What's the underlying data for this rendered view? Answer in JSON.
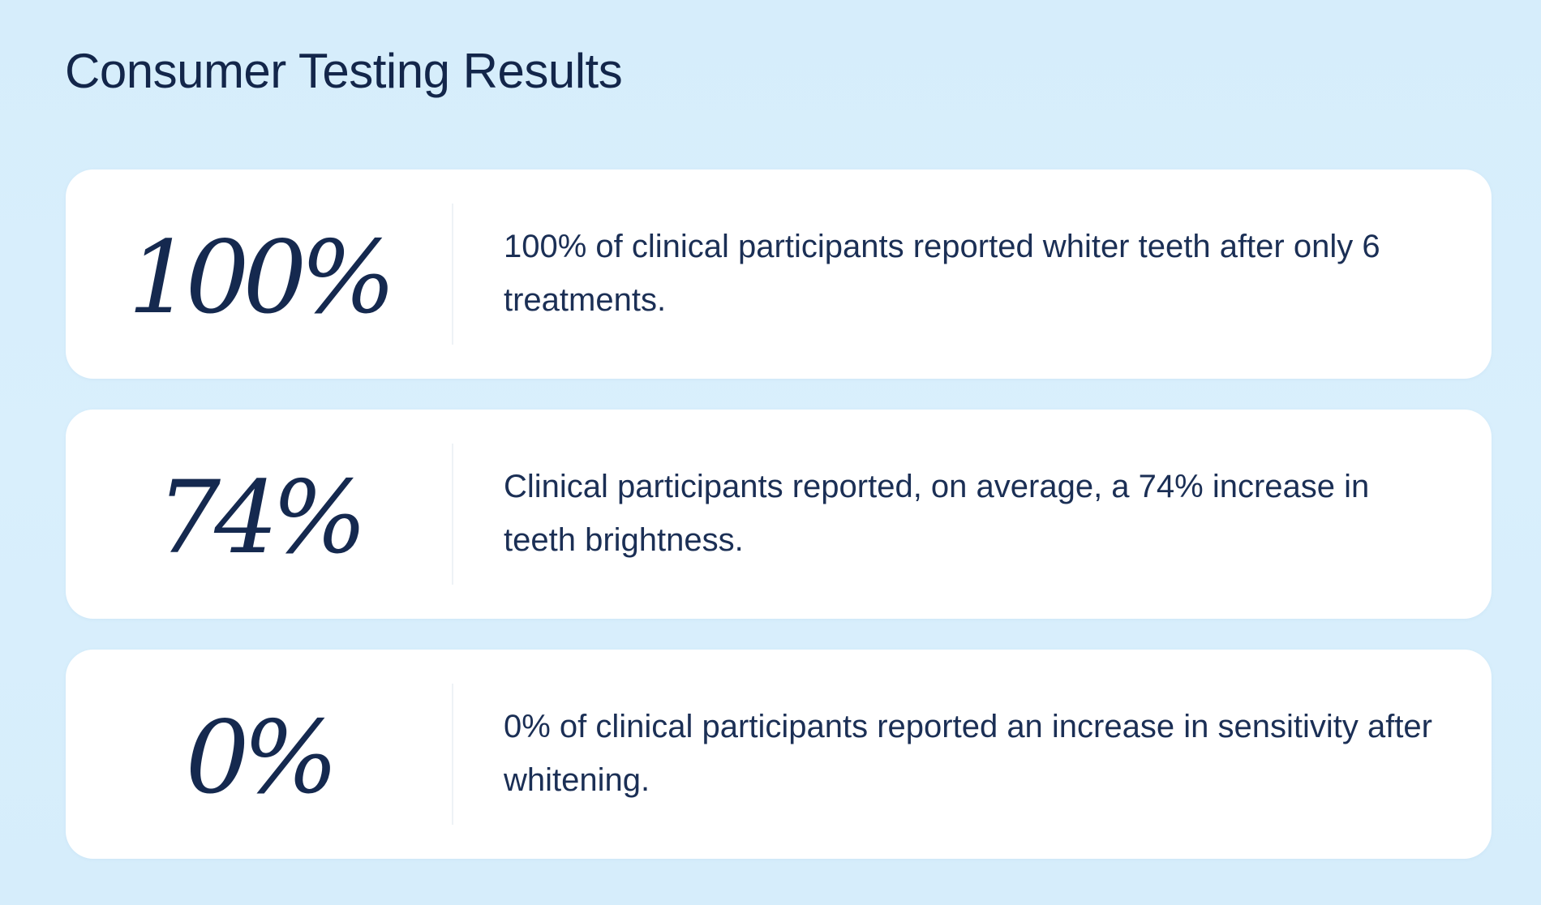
{
  "header": {
    "title": "Consumer Testing Results"
  },
  "results": [
    {
      "stat": "100%",
      "description": "100% of clinical participants reported whiter teeth after only 6 treatments."
    },
    {
      "stat": "74%",
      "description": "Clinical participants reported, on average, a 74% increase in teeth brightness."
    },
    {
      "stat": "0%",
      "description": "0% of clinical participants reported an increase in sensitivity after whitening."
    }
  ],
  "colors": {
    "background": "#d7eefb",
    "card": "#ffffff",
    "text": "#15294f"
  }
}
